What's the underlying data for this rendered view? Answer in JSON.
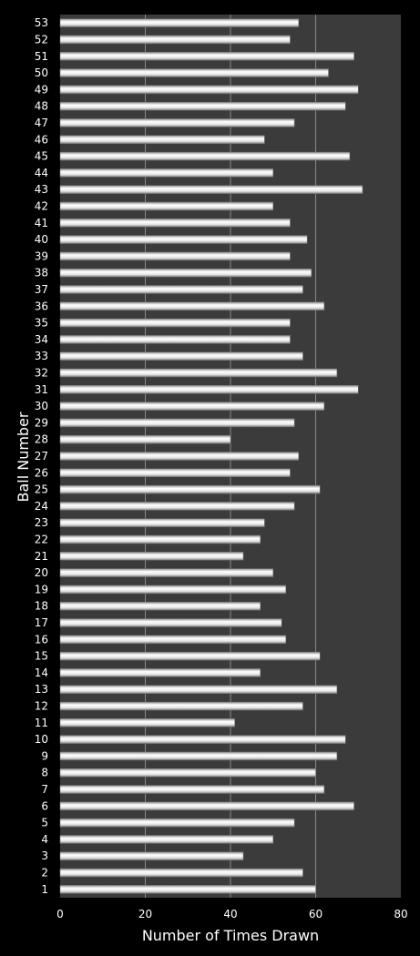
{
  "chart_data": {
    "type": "bar",
    "orientation": "horizontal",
    "title": "",
    "xlabel": "Number of Times Drawn",
    "ylabel": "Ball Number",
    "xlim": [
      0,
      80
    ],
    "x_ticks": [
      "0",
      "20",
      "40",
      "60",
      "80"
    ],
    "grid": "vertical gridlines",
    "categories": [
      "1",
      "2",
      "3",
      "4",
      "5",
      "6",
      "7",
      "8",
      "9",
      "10",
      "11",
      "12",
      "13",
      "14",
      "15",
      "16",
      "17",
      "18",
      "19",
      "20",
      "21",
      "22",
      "23",
      "24",
      "25",
      "26",
      "27",
      "28",
      "29",
      "30",
      "31",
      "32",
      "33",
      "34",
      "35",
      "36",
      "37",
      "38",
      "39",
      "40",
      "41",
      "42",
      "43",
      "44",
      "45",
      "46",
      "47",
      "48",
      "49",
      "50",
      "51",
      "52",
      "53"
    ],
    "values": [
      60,
      57,
      43,
      50,
      55,
      69,
      62,
      60,
      65,
      67,
      41,
      57,
      65,
      47,
      61,
      53,
      52,
      47,
      53,
      50,
      43,
      47,
      48,
      55,
      61,
      54,
      56,
      40,
      55,
      62,
      70,
      65,
      57,
      54,
      54,
      62,
      57,
      59,
      54,
      58,
      54,
      50,
      71,
      50,
      68,
      48,
      55,
      67,
      70,
      63,
      69,
      54,
      56
    ],
    "colors": {
      "background": "#000000",
      "plot_area": "#3b3b3b",
      "gridline": "#8a8a8a",
      "bar_light": "#ffffff",
      "bar_dark": "#9a9a9a"
    }
  }
}
